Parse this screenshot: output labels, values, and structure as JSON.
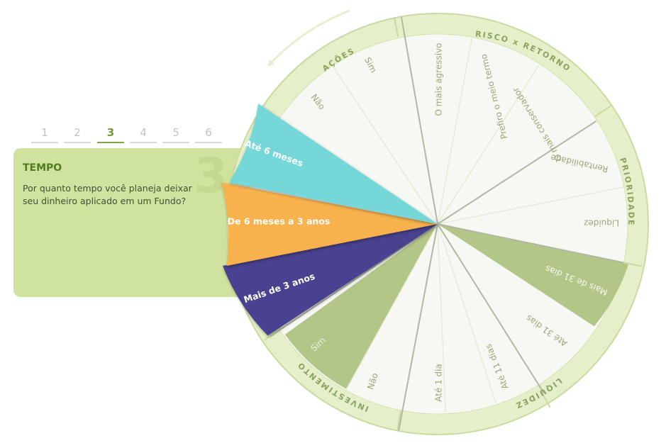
{
  "stepper": {
    "steps": [
      {
        "label": "1"
      },
      {
        "label": "2"
      },
      {
        "label": "3"
      },
      {
        "label": "4"
      },
      {
        "label": "5"
      },
      {
        "label": "6"
      }
    ],
    "active_index": 2
  },
  "panel": {
    "number": "3",
    "title": "TEMPO",
    "question": "Por quanto tempo você planeja deixar seu dinheiro aplicado em um Fundo?"
  },
  "wheel": {
    "categories": {
      "acoes": "AÇÕES",
      "risco": "RISCO x RETORNO",
      "prioridade": "PRIORIDADE",
      "liquidez": "LIQUIDEZ",
      "investimento": "INVESTIMENTO"
    },
    "options": {
      "acoes_sim": "Sim",
      "acoes_nao": "Não",
      "risco_agressivo": "O mais agressivo",
      "risco_meio": "Prefiro o meio termo",
      "risco_conservador": "O mais conservador",
      "prioridade_rentabilidade": "Rentabilidade",
      "prioridade_liquidez": "Liquidez",
      "liquidez_31": "Mais de 31 dias",
      "liquidez_ate31": "Até 31 dias",
      "liquidez_11": "Até 11 dias",
      "liquidez_1": "Até 1 dia",
      "investimento_nao": "Não",
      "investimento_sim": "Sim"
    },
    "time_options": [
      {
        "label": "Até 6 meses",
        "color": "#74d7d7"
      },
      {
        "label": "De 6 meses a 3 anos",
        "color": "#f7b24e"
      },
      {
        "label": "Mais de 3 anos",
        "color": "#4a4290"
      }
    ]
  },
  "colors": {
    "ring": "#e5efc9",
    "slice_light": "#f7f8f3",
    "slice_selected": "#b2c687",
    "category_text": "#89a45f",
    "option_text": "#9aa778",
    "accent": "#7ba543"
  }
}
